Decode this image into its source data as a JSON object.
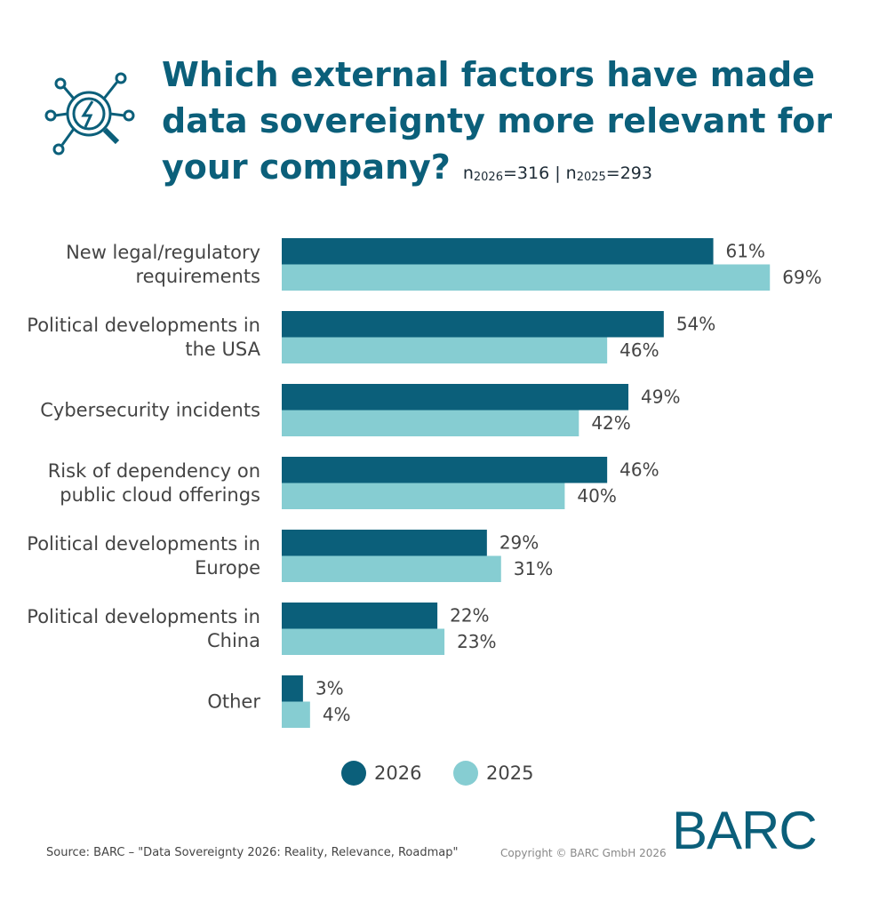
{
  "chart_data": {
    "type": "bar",
    "orientation": "horizontal",
    "title": "Which external factors have made data sovereignty more relevant for your company?",
    "subtitle": [
      {
        "text": "n"
      },
      {
        "sub": "2026"
      },
      {
        "text": "=316 | n"
      },
      {
        "sub": "2025"
      },
      {
        "text": "=293"
      }
    ],
    "categories": [
      "New legal/regulatory requirements",
      "Political developments in the USA",
      "Cybersecurity incidents",
      "Risk of dependency on public cloud offerings",
      "Political developments in Europe",
      "Political developments in China",
      "Other"
    ],
    "series": [
      {
        "name": "2026",
        "color": "#0b5f7a",
        "values": [
          61,
          54,
          49,
          46,
          29,
          22,
          3
        ],
        "value_labels": [
          "61%",
          "54%",
          "49%",
          "46%",
          "29%",
          "22%",
          "3%"
        ]
      },
      {
        "name": "2025",
        "color": "#86cdd2",
        "values": [
          69,
          46,
          42,
          40,
          31,
          23,
          4
        ],
        "value_labels": [
          "69%",
          "46%",
          "42%",
          "40%",
          "31%",
          "23%",
          "4%"
        ]
      }
    ],
    "xlim": [
      0,
      100
    ],
    "grid": false,
    "legend": "bottom",
    "source": "Source: BARC – \"Data Sovereignty 2026: Reality, Relevance, Roadmap\"",
    "copyright": "Copyright © BARC GmbH 2026",
    "logo": "BARC"
  }
}
